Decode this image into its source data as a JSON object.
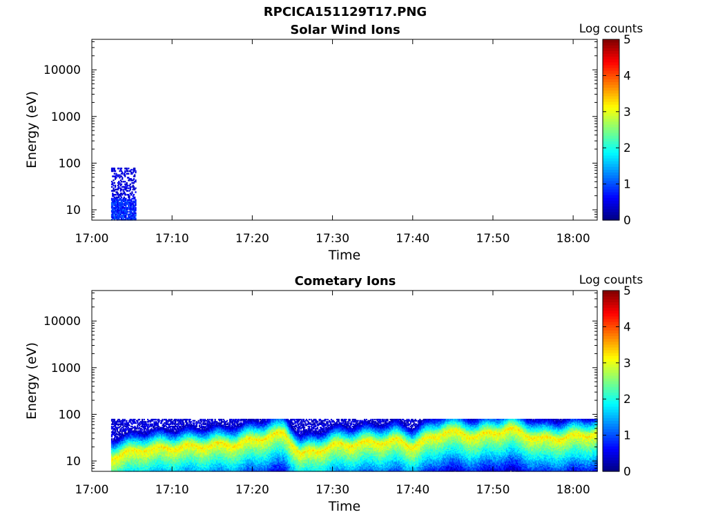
{
  "figure_title": "RPCICA151129T17.PNG",
  "colorbar": {
    "label": "Log counts",
    "ticks": [
      "0",
      "1",
      "2",
      "3",
      "4",
      "5"
    ],
    "colormap": "jet",
    "range": [
      0,
      5
    ]
  },
  "chart_data": [
    {
      "type": "heatmap",
      "title": "Solar Wind Ions",
      "xlabel": "Time",
      "ylabel": "Energy (eV)",
      "xticks": [
        "17:00",
        "17:10",
        "17:20",
        "17:30",
        "17:40",
        "17:50",
        "18:00"
      ],
      "yticks": [
        "10",
        "100",
        "1000",
        "10000"
      ],
      "yscale": "log",
      "ylim": [
        6,
        45000
      ],
      "xlim_minutes_after_1700": [
        0,
        63
      ],
      "segments": [
        {
          "t_start": "17:02:24",
          "t_end": "17:05:24",
          "e_min_eV": 6,
          "e_max_eV": 80,
          "core_e_min_eV": 6,
          "core_e_max_eV": 18,
          "core_log_counts": 0.8,
          "halo_log_counts": 0.3
        }
      ]
    },
    {
      "type": "heatmap",
      "title": "Cometary Ions",
      "xlabel": "Time",
      "ylabel": "Energy (eV)",
      "xticks": [
        "17:00",
        "17:10",
        "17:20",
        "17:30",
        "17:40",
        "17:50",
        "18:00"
      ],
      "yticks": [
        "10",
        "100",
        "1000",
        "10000"
      ],
      "yscale": "log",
      "ylim": [
        6,
        45000
      ],
      "xlim_minutes_after_1700": [
        0,
        63
      ],
      "data_start": "17:02:24",
      "data_end": "18:03:00",
      "upper_cutoff_eV": 80,
      "peak_energy_eV": {
        "times": [
          "17:02",
          "17:06",
          "17:10",
          "17:14",
          "17:18",
          "17:22",
          "17:24",
          "17:26",
          "17:30",
          "17:34",
          "17:38",
          "17:40",
          "17:44",
          "17:48",
          "17:52",
          "17:56",
          "18:00",
          "18:03"
        ],
        "values": [
          12,
          18,
          20,
          22,
          24,
          35,
          40,
          14,
          22,
          25,
          28,
          22,
          45,
          35,
          50,
          30,
          35,
          40
        ]
      },
      "peak_log_counts": 3.2
    }
  ]
}
